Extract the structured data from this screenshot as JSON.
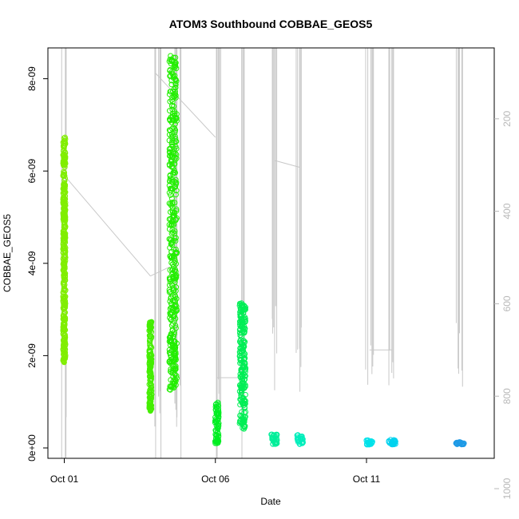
{
  "chart_data": {
    "type": "scatter",
    "title": "ATOM3 Southbound COBBAE_GEOS5",
    "xlabel": "Date",
    "ylabel": "COBBAE_GEOS5",
    "x_ticks": [
      "Oct 01",
      "Oct 06",
      "Oct 11"
    ],
    "x_tick_days": [
      1,
      6,
      11
    ],
    "xlim_days": [
      0.6,
      14.8
    ],
    "ylim": [
      0,
      8.6e-09
    ],
    "y_ticks": [
      0,
      2e-09,
      4e-09,
      6e-09,
      8e-09
    ],
    "y_tick_labels": [
      "0e+00",
      "2e-09",
      "4e-09",
      "6e-09",
      "8e-09"
    ],
    "right_axis": {
      "reversed": true,
      "ylim": [
        100,
        1060
      ],
      "ticks": [
        200,
        400,
        600,
        800,
        1000
      ],
      "color": "#b8b8b8"
    },
    "grid": false,
    "legend": "none",
    "clusters": [
      {
        "day": 1.0,
        "width": 0.08,
        "ymin": 1.85e-09,
        "ymax": 6.75e-09,
        "color": "#80ee00"
      },
      {
        "day": 3.85,
        "width": 0.08,
        "ymin": 8e-10,
        "ymax": 2.8e-09,
        "color": "#44ee00"
      },
      {
        "day": 4.6,
        "width": 0.25,
        "ymin": 1.25e-09,
        "ymax": 8.5e-09,
        "color": "#22ee00"
      },
      {
        "day": 6.05,
        "width": 0.12,
        "ymin": 1e-10,
        "ymax": 1e-09,
        "color": "#00ee22"
      },
      {
        "day": 6.9,
        "width": 0.2,
        "ymin": 4e-10,
        "ymax": 3.15e-09,
        "color": "#00ee55"
      },
      {
        "day": 7.95,
        "width": 0.2,
        "ymin": 8e-11,
        "ymax": 3e-10,
        "color": "#00ee99"
      },
      {
        "day": 8.8,
        "width": 0.2,
        "ymin": 8e-11,
        "ymax": 2.8e-10,
        "color": "#00eebb"
      },
      {
        "day": 11.1,
        "width": 0.2,
        "ymin": 7e-11,
        "ymax": 1.7e-10,
        "color": "#00e2ea"
      },
      {
        "day": 11.85,
        "width": 0.22,
        "ymin": 7e-11,
        "ymax": 1.8e-10,
        "color": "#00d2ee"
      },
      {
        "day": 14.1,
        "width": 0.28,
        "ymin": 7e-11,
        "ymax": 1.3e-10,
        "color": "#1f9ae6"
      }
    ],
    "pressure_profiles": [
      {
        "day": 1.0,
        "pmin": 100,
        "pmax": 1030
      },
      {
        "day": 4.1,
        "pmin": 100,
        "pmax": 1010
      },
      {
        "day": 4.75,
        "pmin": 100,
        "pmax": 1000
      },
      {
        "day": 6.05,
        "pmin": 100,
        "pmax": 1005
      },
      {
        "day": 6.9,
        "pmin": 100,
        "pmax": 1000
      },
      {
        "day": 7.95,
        "pmin": 100,
        "pmax": 820
      },
      {
        "day": 8.8,
        "pmin": 100,
        "pmax": 800
      },
      {
        "day": 11.1,
        "pmin": 100,
        "pmax": 820
      },
      {
        "day": 11.85,
        "pmin": 100,
        "pmax": 790
      },
      {
        "day": 14.1,
        "pmin": 100,
        "pmax": 780
      }
    ],
    "pressure_transits": [
      [
        1.1,
        330,
        3.85,
        540
      ],
      [
        3.85,
        540,
        4.5,
        520
      ],
      [
        4.0,
        100,
        6.0,
        240
      ],
      [
        7.95,
        290,
        8.8,
        305
      ],
      [
        11.1,
        700,
        11.85,
        700
      ],
      [
        6.05,
        760,
        6.9,
        760
      ]
    ]
  }
}
